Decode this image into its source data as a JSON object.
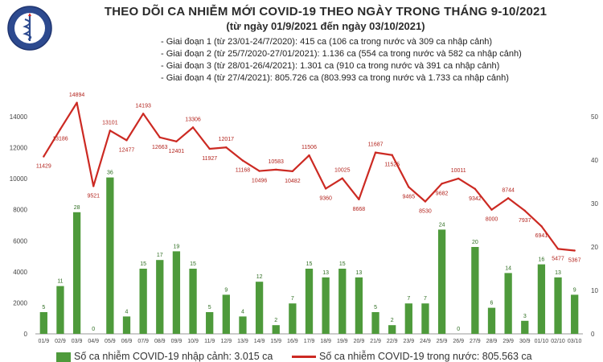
{
  "header": {
    "title": "THEO DÕI CA NHIỄM MỚI COVID-19 THEO NGÀY TRONG THÁNG 9-10/2021",
    "subtitle": "(từ ngày 01/9/2021 đến ngày 03/10/2021)",
    "logo_text": "BỘ Y TẾ",
    "logo_subtext": "MINISTRY OF HEALTH"
  },
  "phases": [
    "- Giai đoạn 1 (từ 23/01-24/7/2020): 415 ca (106 ca trong nước và 309 ca nhập cảnh)",
    "- Giai đoạn 2 (từ 25/7/2020-27/01/2021): 1.136 ca (554 ca trong nước và 582 ca nhập cảnh)",
    "- Giai đoạn 3 (từ 28/01-26/4/2021): 1.301 ca (910 ca trong nước và 391 ca nhập cảnh)",
    "- Giai đoạn 4 (từ 27/4/2021): 805.726 ca (803.993 ca trong nước và 1.733 ca nhập cảnh)"
  ],
  "chart_data": {
    "type": "bar+line",
    "categories": [
      "01/9",
      "02/9",
      "03/9",
      "04/9",
      "05/9",
      "06/9",
      "07/9",
      "08/9",
      "09/9",
      "10/9",
      "11/9",
      "12/9",
      "13/9",
      "14/9",
      "15/9",
      "16/9",
      "17/9",
      "18/9",
      "19/9",
      "20/9",
      "21/9",
      "22/9",
      "23/9",
      "24/9",
      "25/9",
      "26/9",
      "27/9",
      "28/9",
      "29/9",
      "30/9",
      "01/10",
      "02/10",
      "03/10"
    ],
    "series": [
      {
        "name": "Số ca nhiễm COVID-19 nhập cảnh: 3.015 ca",
        "kind": "bar",
        "axis": "right",
        "color": "#4e9a3b",
        "values": [
          5,
          11,
          28,
          0,
          36,
          4,
          15,
          17,
          19,
          15,
          5,
          9,
          4,
          12,
          2,
          7,
          15,
          13,
          15,
          13,
          5,
          2,
          7,
          7,
          24,
          0,
          20,
          6,
          14,
          3,
          16,
          13,
          9
        ]
      },
      {
        "name": "Số ca nhiễm COVID-19 trong nước: 805.563 ca",
        "kind": "line",
        "axis": "left",
        "color": "#cc2a23",
        "values": [
          11429,
          13186,
          14894,
          9521,
          13101,
          12477,
          14193,
          12663,
          12401,
          13306,
          11927,
          12017,
          11168,
          10496,
          10583,
          10482,
          11506,
          9360,
          10025,
          8668,
          11687,
          11525,
          9465,
          8530,
          9682,
          10011,
          9342,
          8000,
          8744,
          7937,
          6941,
          5477,
          5367
        ]
      }
    ],
    "left_axis": {
      "min": 0,
      "max": 14000,
      "ticks": [
        0,
        2000,
        4000,
        6000,
        8000,
        10000,
        12000,
        14000
      ]
    },
    "right_axis": {
      "min": 0,
      "max": 50,
      "ticks": [
        0,
        10,
        20,
        30,
        40,
        50
      ]
    },
    "grid": false,
    "legend_position": "bottom"
  }
}
